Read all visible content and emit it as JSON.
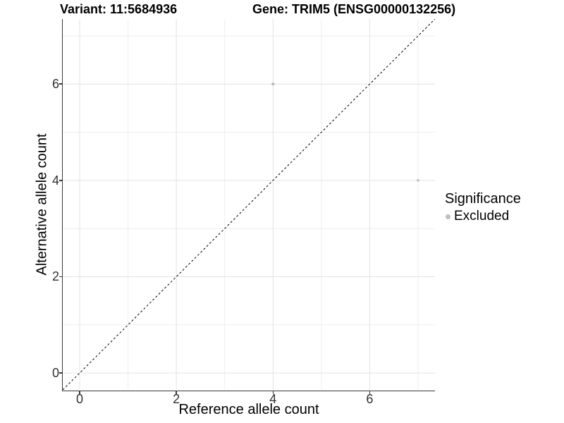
{
  "header": {
    "variant_title": "Variant: 11:5684936",
    "gene_title": "Gene: TRIM5 (ENSG00000132256)"
  },
  "chart_data": {
    "type": "scatter",
    "xlabel": "Reference allele count",
    "ylabel": "Alternative allele count",
    "xlim": [
      -0.35,
      7.35
    ],
    "ylim": [
      -0.35,
      7.35
    ],
    "xticks": [
      0,
      2,
      4,
      6
    ],
    "yticks": [
      0,
      2,
      4,
      6
    ],
    "xminor": [
      1,
      3,
      5,
      7
    ],
    "yminor": [
      1,
      3,
      5,
      7
    ],
    "grid": true,
    "points": [
      {
        "x": 4,
        "y": 6,
        "r": 2.2,
        "series": "Excluded"
      },
      {
        "x": 7,
        "y": 4,
        "r": 1.8,
        "series": "Excluded"
      }
    ],
    "reference_line": {
      "slope": 1,
      "intercept": 0,
      "style": "dashed",
      "color": "#000000"
    },
    "legend": {
      "title": "Significance",
      "position": "right",
      "items": [
        {
          "label": "Excluded",
          "marker": "circle",
          "color": "#bebebe"
        }
      ]
    },
    "colors": {
      "point": "#bebebe",
      "grid_major": "#e3e3e3",
      "grid_minor": "#eeeeee",
      "axis_line": "#383838",
      "tick_label": "#303030",
      "background": "#ffffff"
    }
  }
}
